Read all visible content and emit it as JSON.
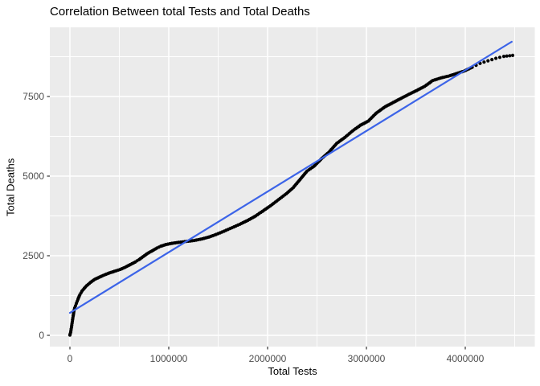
{
  "chart_data": {
    "type": "scatter",
    "title": "Correlation Between total Tests and Total Deaths",
    "xlabel": "Total Tests",
    "ylabel": "Total Deaths",
    "legend": "none",
    "grid": "on",
    "xlim": [
      -220000,
      4700000
    ],
    "ylim": [
      -350,
      9650
    ],
    "x_ticks": [
      0,
      1000000,
      2000000,
      3000000,
      4000000
    ],
    "x_tick_labels": [
      "0",
      "1000000",
      "2000000",
      "3000000",
      "4000000"
    ],
    "x_minor_ticks": [
      500000,
      1500000,
      2500000,
      3500000,
      4500000
    ],
    "y_ticks": [
      0,
      2500,
      5000,
      7500
    ],
    "y_tick_labels": [
      "0",
      "2500",
      "5000",
      "7500"
    ],
    "y_minor_ticks": [
      1250,
      3750,
      6250,
      8750
    ],
    "points": [
      [
        0,
        10
      ],
      [
        8000,
        100
      ],
      [
        16000,
        260
      ],
      [
        24000,
        430
      ],
      [
        33000,
        610
      ],
      [
        41000,
        760
      ],
      [
        49000,
        860
      ],
      [
        65000,
        1000
      ],
      [
        81000,
        1130
      ],
      [
        100000,
        1270
      ],
      [
        122000,
        1390
      ],
      [
        146000,
        1480
      ],
      [
        170000,
        1560
      ],
      [
        211000,
        1670
      ],
      [
        252000,
        1760
      ],
      [
        301000,
        1830
      ],
      [
        350000,
        1900
      ],
      [
        400000,
        1960
      ],
      [
        450000,
        2010
      ],
      [
        510000,
        2070
      ],
      [
        560000,
        2140
      ],
      [
        610000,
        2220
      ],
      [
        660000,
        2300
      ],
      [
        700000,
        2380
      ],
      [
        740000,
        2470
      ],
      [
        780000,
        2560
      ],
      [
        830000,
        2650
      ],
      [
        880000,
        2740
      ],
      [
        920000,
        2800
      ],
      [
        970000,
        2850
      ],
      [
        1030000,
        2890
      ],
      [
        1100000,
        2920
      ],
      [
        1180000,
        2950
      ],
      [
        1260000,
        2980
      ],
      [
        1340000,
        3030
      ],
      [
        1410000,
        3090
      ],
      [
        1480000,
        3170
      ],
      [
        1560000,
        3270
      ],
      [
        1640000,
        3380
      ],
      [
        1720000,
        3490
      ],
      [
        1800000,
        3610
      ],
      [
        1880000,
        3750
      ],
      [
        1950000,
        3900
      ],
      [
        2030000,
        4070
      ],
      [
        2110000,
        4260
      ],
      [
        2190000,
        4450
      ],
      [
        2260000,
        4640
      ],
      [
        2330000,
        4900
      ],
      [
        2400000,
        5160
      ],
      [
        2470000,
        5310
      ],
      [
        2550000,
        5560
      ],
      [
        2620000,
        5750
      ],
      [
        2700000,
        6030
      ],
      [
        2780000,
        6210
      ],
      [
        2860000,
        6420
      ],
      [
        2940000,
        6600
      ],
      [
        3020000,
        6730
      ],
      [
        3100000,
        6980
      ],
      [
        3190000,
        7180
      ],
      [
        3270000,
        7310
      ],
      [
        3350000,
        7440
      ],
      [
        3430000,
        7570
      ],
      [
        3510000,
        7690
      ],
      [
        3590000,
        7820
      ],
      [
        3670000,
        8000
      ],
      [
        3750000,
        8080
      ],
      [
        3830000,
        8140
      ],
      [
        3910000,
        8220
      ],
      [
        3990000,
        8300
      ],
      [
        4070000,
        8420
      ],
      [
        4150000,
        8540
      ],
      [
        4230000,
        8620
      ],
      [
        4310000,
        8700
      ],
      [
        4390000,
        8760
      ],
      [
        4480000,
        8790
      ]
    ],
    "trendline": {
      "kind": "linear",
      "x": [
        0,
        4470000
      ],
      "y": [
        705,
        9220
      ]
    }
  },
  "style": {
    "panel_bg": "#EBEBEB",
    "grid_color": "#FFFFFF",
    "point_color": "#000000",
    "line_color": "#3C64E8",
    "tick_color": "#333333",
    "tick_label_color": "#4D4D4D",
    "title_color": "#000000"
  }
}
